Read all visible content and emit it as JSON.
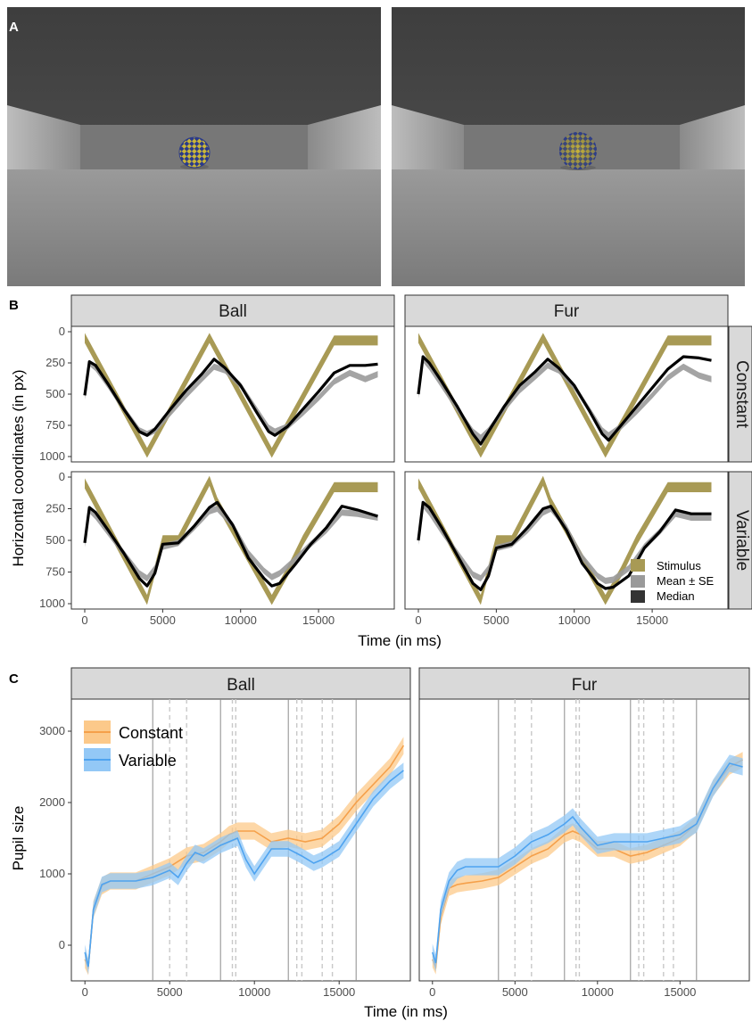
{
  "panel_labels": [
    "A",
    "B",
    "C"
  ],
  "colors": {
    "stimulus": "#a89a55",
    "mean_se": "#9a9a9a",
    "median": "#000000",
    "constant": "#f5a04a",
    "constant_ribbon": "#fcc98a",
    "variable": "#4ea3f0",
    "variable_ribbon": "#93c8f6",
    "strip_bg": "#d9d9d9",
    "room_wall": "#4a4a4a",
    "room_floor": "#8c8c8c",
    "ball_blue": "#2a3a8a",
    "ball_yellow": "#c8b43a"
  },
  "chart_data": [
    {
      "type": "line",
      "panel": "B",
      "facets_col": [
        "Ball",
        "Fur"
      ],
      "facets_row": [
        "Constant",
        "Variable"
      ],
      "xlabel": "Time (in ms)",
      "ylabel": "Horizontal coordinates (in px)",
      "xlim": [
        0,
        19000
      ],
      "ylim": [
        1000,
        0
      ],
      "x_ticks": [
        "0",
        "5000",
        "10000",
        "15000"
      ],
      "x_tick_values": [
        0,
        5000,
        10000,
        15000
      ],
      "y_ticks": [
        "0",
        "250",
        "500",
        "750",
        "1000"
      ],
      "y_tick_values": [
        0,
        250,
        500,
        750,
        1000
      ],
      "legend": [
        "Stimulus",
        "Mean ± SE",
        "Median"
      ],
      "legend_position": "bottom-right",
      "stimulus": {
        "Constant": {
          "x": [
            0,
            4000,
            8000,
            12000,
            16000,
            18800
          ],
          "y": [
            50,
            970,
            50,
            970,
            70,
            70
          ],
          "band": 40
        },
        "Variable": {
          "x": [
            0,
            4000,
            5000,
            6000,
            8000,
            8500,
            12000,
            13000,
            14000,
            16000,
            18800
          ],
          "y": [
            50,
            970,
            500,
            500,
            30,
            200,
            970,
            750,
            500,
            80,
            80
          ],
          "band": 40
        }
      },
      "series": [
        {
          "name": "Median",
          "facet": "Ball-Constant",
          "x": [
            0,
            300,
            700,
            1500,
            2500,
            3500,
            4000,
            4500,
            5500,
            6500,
            7500,
            8300,
            9000,
            10000,
            11000,
            11800,
            12200,
            13000,
            14000,
            15000,
            16000,
            17000,
            18000,
            18800
          ],
          "y": [
            510,
            240,
            270,
            420,
            620,
            800,
            830,
            780,
            620,
            470,
            340,
            220,
            290,
            430,
            640,
            800,
            830,
            760,
            620,
            480,
            330,
            270,
            270,
            260
          ]
        },
        {
          "name": "Mean ± SE",
          "facet": "Ball-Constant",
          "x": [
            0,
            300,
            700,
            1500,
            2500,
            3500,
            4000,
            4500,
            5500,
            6500,
            7500,
            8300,
            9000,
            10000,
            11000,
            11800,
            12200,
            13000,
            14000,
            15000,
            16000,
            17000,
            18000,
            18800
          ],
          "y": [
            520,
            250,
            290,
            430,
            620,
            790,
            820,
            790,
            650,
            510,
            380,
            280,
            310,
            430,
            620,
            770,
            800,
            760,
            650,
            530,
            400,
            330,
            380,
            340
          ]
        },
        {
          "name": "Median",
          "facet": "Fur-Constant",
          "x": [
            0,
            300,
            700,
            1500,
            2500,
            3500,
            4000,
            4500,
            5500,
            6500,
            7500,
            8300,
            9000,
            10000,
            11000,
            11800,
            12200,
            13000,
            14000,
            15000,
            16000,
            17000,
            18000,
            18800
          ],
          "y": [
            500,
            200,
            250,
            400,
            600,
            820,
            900,
            800,
            600,
            430,
            320,
            220,
            290,
            430,
            640,
            820,
            870,
            750,
            600,
            450,
            300,
            200,
            210,
            230
          ]
        },
        {
          "name": "Mean ± SE",
          "facet": "Fur-Constant",
          "x": [
            0,
            300,
            700,
            1500,
            2500,
            3500,
            4000,
            4500,
            5500,
            6500,
            7500,
            8300,
            9000,
            10000,
            11000,
            11800,
            12200,
            13000,
            14000,
            15000,
            16000,
            17000,
            18000,
            18800
          ],
          "y": [
            510,
            220,
            280,
            430,
            620,
            800,
            850,
            790,
            620,
            470,
            360,
            270,
            310,
            440,
            630,
            790,
            830,
            760,
            640,
            510,
            370,
            280,
            350,
            380
          ]
        },
        {
          "name": "Median",
          "facet": "Ball-Variable",
          "x": [
            0,
            300,
            700,
            1500,
            2500,
            3500,
            4000,
            4500,
            5000,
            6000,
            7000,
            8000,
            8500,
            9500,
            10500,
            11500,
            12000,
            12500,
            13500,
            14500,
            15500,
            16500,
            17500,
            18800
          ],
          "y": [
            520,
            240,
            280,
            420,
            600,
            800,
            860,
            760,
            530,
            520,
            390,
            240,
            200,
            380,
            640,
            800,
            860,
            840,
            690,
            530,
            400,
            230,
            260,
            310
          ]
        },
        {
          "name": "Mean ± SE",
          "facet": "Ball-Variable",
          "x": [
            0,
            300,
            700,
            1500,
            2500,
            3500,
            4000,
            4500,
            5000,
            6000,
            7000,
            8000,
            8500,
            9500,
            10500,
            11500,
            12000,
            12500,
            13500,
            14500,
            15500,
            16500,
            17500,
            18800
          ],
          "y": [
            530,
            260,
            310,
            440,
            600,
            760,
            800,
            720,
            550,
            520,
            400,
            270,
            250,
            380,
            600,
            740,
            790,
            760,
            650,
            530,
            420,
            280,
            290,
            320
          ]
        },
        {
          "name": "Median",
          "facet": "Fur-Variable",
          "x": [
            0,
            300,
            700,
            1500,
            2500,
            3500,
            4000,
            4500,
            5000,
            6000,
            7000,
            8000,
            8500,
            9500,
            10500,
            11500,
            12000,
            12500,
            13500,
            14500,
            15500,
            16500,
            17500,
            18800
          ],
          "y": [
            500,
            200,
            240,
            400,
            620,
            840,
            890,
            780,
            560,
            530,
            400,
            250,
            230,
            420,
            680,
            840,
            880,
            870,
            780,
            560,
            430,
            260,
            290,
            290
          ]
        },
        {
          "name": "Mean ± SE",
          "facet": "Fur-Variable",
          "x": [
            0,
            300,
            700,
            1500,
            2500,
            3500,
            4000,
            4500,
            5000,
            6000,
            7000,
            8000,
            8500,
            9500,
            10500,
            11500,
            12000,
            12500,
            13500,
            14500,
            15500,
            16500,
            17500,
            18800
          ],
          "y": [
            510,
            220,
            280,
            430,
            600,
            770,
            800,
            720,
            560,
            530,
            420,
            280,
            250,
            400,
            630,
            780,
            820,
            810,
            720,
            550,
            430,
            290,
            320,
            320
          ]
        }
      ]
    },
    {
      "type": "line",
      "panel": "C",
      "facets_col": [
        "Ball",
        "Fur"
      ],
      "xlabel": "Time (in ms)",
      "ylabel": "Pupil size",
      "xlim": [
        -800,
        19200
      ],
      "ylim": [
        -500,
        3450
      ],
      "x_ticks": [
        "0",
        "5000",
        "10000",
        "15000"
      ],
      "x_tick_values": [
        0,
        5000,
        10000,
        15000
      ],
      "y_ticks": [
        "0",
        "1000",
        "2000",
        "3000"
      ],
      "y_tick_values": [
        0,
        1000,
        2000,
        3000
      ],
      "legend": [
        "Constant",
        "Variable"
      ],
      "legend_position": "top-left",
      "solid_vlines": [
        4000,
        8000,
        12000,
        16000
      ],
      "dashed_vlines": [
        5000,
        6000,
        8700,
        8900,
        12500,
        12800,
        14000,
        14600
      ],
      "series": [
        {
          "name": "Constant",
          "facet": "Ball",
          "x": [
            0,
            200,
            500,
            1000,
            1500,
            2000,
            3000,
            4000,
            5000,
            6000,
            7000,
            8000,
            8500,
            9000,
            10000,
            11000,
            12000,
            13000,
            14000,
            15000,
            16000,
            17000,
            18000,
            18800
          ],
          "y": [
            -200,
            -300,
            500,
            830,
            900,
            900,
            900,
            1000,
            1100,
            1250,
            1300,
            1450,
            1550,
            1600,
            1600,
            1450,
            1500,
            1450,
            1500,
            1700,
            2000,
            2250,
            2500,
            2800
          ],
          "se": 120
        },
        {
          "name": "Variable",
          "facet": "Ball",
          "x": [
            0,
            200,
            500,
            1000,
            1500,
            2000,
            3000,
            4000,
            5000,
            5500,
            6000,
            6500,
            7000,
            8000,
            8500,
            9000,
            9500,
            10000,
            11000,
            12000,
            12800,
            13500,
            14000,
            15000,
            16000,
            17000,
            18000,
            18800
          ],
          "y": [
            -100,
            -300,
            500,
            850,
            900,
            900,
            900,
            950,
            1050,
            950,
            1150,
            1300,
            1250,
            1400,
            1450,
            1500,
            1200,
            1000,
            1350,
            1350,
            1250,
            1150,
            1200,
            1350,
            1700,
            2050,
            2300,
            2450
          ],
          "se": 110
        },
        {
          "name": "Constant",
          "facet": "Fur",
          "x": [
            0,
            200,
            500,
            1000,
            1500,
            2000,
            3000,
            4000,
            5000,
            6000,
            7000,
            8000,
            8500,
            9000,
            10000,
            11000,
            12000,
            13000,
            14000,
            15000,
            16000,
            17000,
            18000,
            18800
          ],
          "y": [
            -200,
            -300,
            400,
            800,
            850,
            870,
            900,
            950,
            1100,
            1250,
            1350,
            1550,
            1600,
            1550,
            1350,
            1350,
            1250,
            1300,
            1400,
            1500,
            1700,
            2200,
            2500,
            2600
          ],
          "se": 110
        },
        {
          "name": "Variable",
          "facet": "Fur",
          "x": [
            0,
            200,
            500,
            1000,
            1500,
            2000,
            3000,
            4000,
            5000,
            6000,
            7000,
            8000,
            8500,
            9000,
            10000,
            11000,
            12000,
            13000,
            14000,
            15000,
            16000,
            17000,
            18000,
            18800
          ],
          "y": [
            -100,
            -250,
            500,
            900,
            1050,
            1100,
            1100,
            1100,
            1250,
            1450,
            1550,
            1700,
            1800,
            1650,
            1400,
            1450,
            1450,
            1450,
            1500,
            1550,
            1700,
            2200,
            2550,
            2500
          ],
          "se": 120
        }
      ]
    }
  ]
}
